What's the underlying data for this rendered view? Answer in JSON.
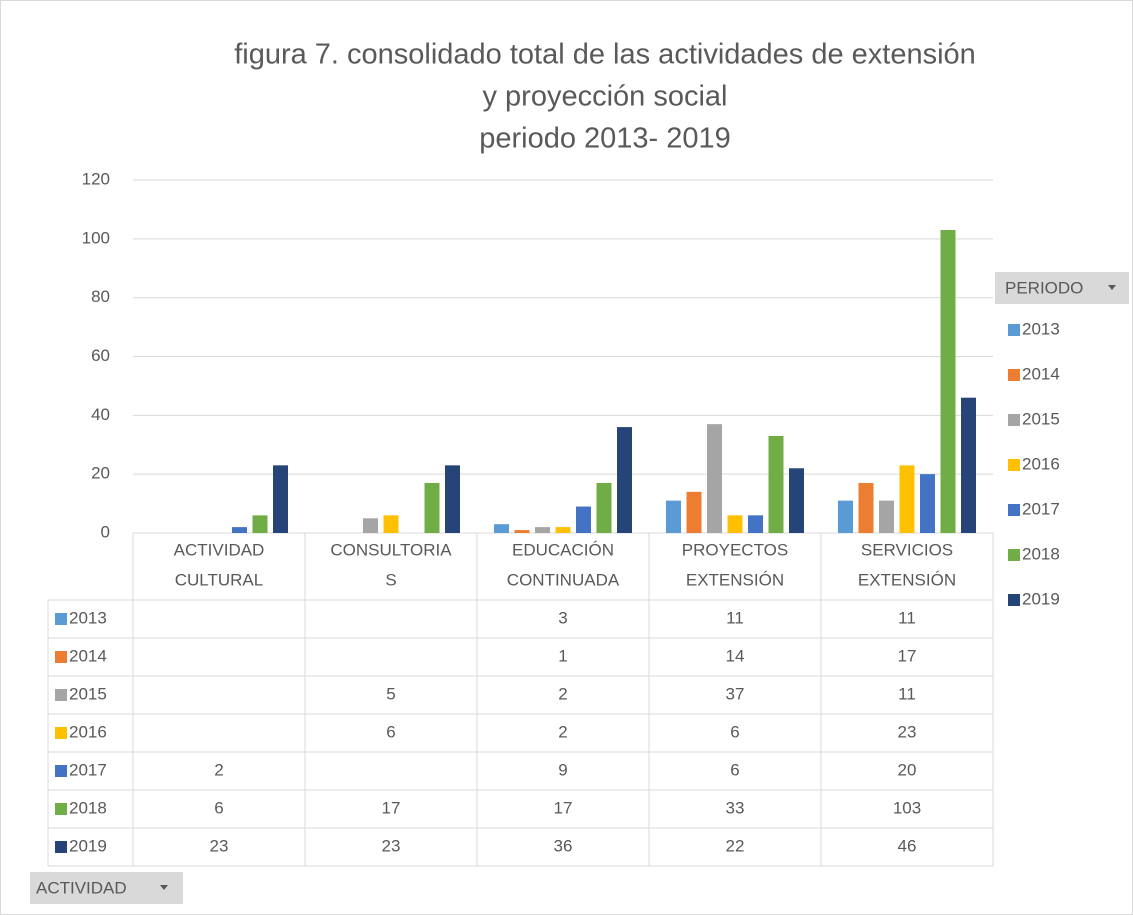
{
  "chart_data": {
    "type": "bar",
    "title": [
      "figura 7. consolidado total de las actividades de extensión",
      "y proyección social",
      "periodo 2013- 2019"
    ],
    "categories": [
      [
        "ACTIVIDAD",
        "CULTURAL"
      ],
      [
        "CONSULTORIA",
        "S"
      ],
      [
        "EDUCACIÓN",
        "CONTINUADA"
      ],
      [
        "PROYECTOS",
        "EXTENSIÓN"
      ],
      [
        "SERVICIOS",
        "EXTENSIÓN"
      ]
    ],
    "series": [
      {
        "name": "2013",
        "color": "#5b9bd5",
        "values": [
          null,
          null,
          3,
          11,
          11
        ]
      },
      {
        "name": "2014",
        "color": "#ed7d31",
        "values": [
          null,
          null,
          1,
          14,
          17
        ]
      },
      {
        "name": "2015",
        "color": "#a5a5a5",
        "values": [
          null,
          5,
          2,
          37,
          11
        ]
      },
      {
        "name": "2016",
        "color": "#ffc000",
        "values": [
          null,
          6,
          2,
          6,
          23
        ]
      },
      {
        "name": "2017",
        "color": "#4472c4",
        "values": [
          2,
          null,
          9,
          6,
          20
        ]
      },
      {
        "name": "2018",
        "color": "#70ad47",
        "values": [
          6,
          17,
          17,
          33,
          103
        ]
      },
      {
        "name": "2019",
        "color": "#264478",
        "values": [
          23,
          23,
          36,
          22,
          46
        ]
      }
    ],
    "ylim": [
      0,
      120
    ],
    "yticks": [
      0,
      20,
      40,
      60,
      80,
      100,
      120
    ],
    "grid": true,
    "legend_title": "PERIODO",
    "row_field": "ACTIVIDAD"
  }
}
